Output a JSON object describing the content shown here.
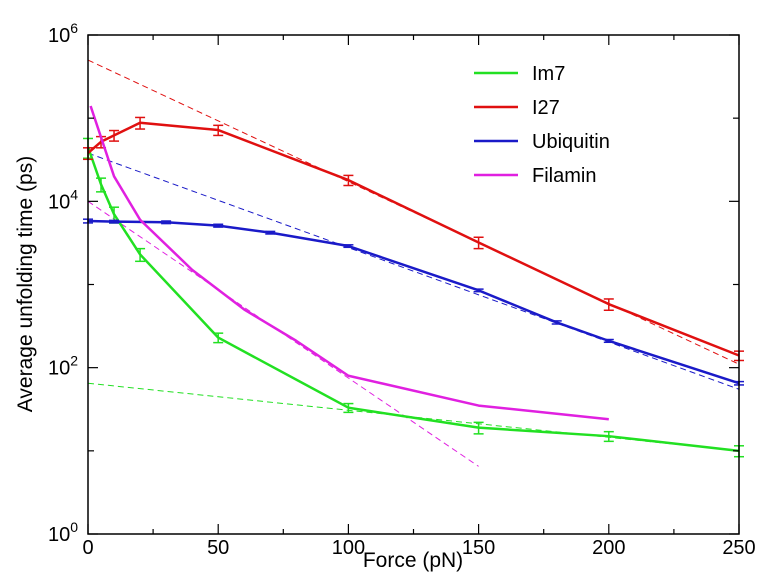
{
  "chart_data": {
    "type": "line",
    "xlabel": "Force (pN)",
    "ylabel": "Average unfolding time (ps)",
    "xlim": [
      0,
      250
    ],
    "ylim": [
      1,
      1000000
    ],
    "yscale": "log",
    "grid": false,
    "legend_position": "top-right",
    "x_ticks": [
      0,
      50,
      100,
      150,
      200,
      250
    ],
    "x_tick_labels": [
      "0",
      "50",
      "100",
      "150",
      "200",
      "250"
    ],
    "y_ticks": [
      1,
      100,
      10000,
      1000000
    ],
    "y_tick_labels": [
      {
        "base": "10",
        "exp": "0"
      },
      {
        "base": "10",
        "exp": "2"
      },
      {
        "base": "10",
        "exp": "4"
      },
      {
        "base": "10",
        "exp": "6"
      }
    ],
    "series": [
      {
        "name": "Im7",
        "color": "#22e022",
        "points": [
          {
            "x": 0,
            "y": 45000,
            "err": 12000
          },
          {
            "x": 5,
            "y": 16000,
            "err": 3000
          },
          {
            "x": 10,
            "y": 7000,
            "err": 1500
          },
          {
            "x": 20,
            "y": 2300,
            "err": 400
          },
          {
            "x": 50,
            "y": 230,
            "err": 30
          },
          {
            "x": 100,
            "y": 33,
            "err": 4
          },
          {
            "x": 150,
            "y": 19,
            "err": 3
          },
          {
            "x": 200,
            "y": 15,
            "err": 2
          },
          {
            "x": 250,
            "y": 10,
            "err": 1.5
          }
        ],
        "fit": [
          {
            "x": 0,
            "y": 65
          },
          {
            "x": 250,
            "y": 10
          }
        ]
      },
      {
        "name": "I27",
        "color": "#e01010",
        "points": [
          {
            "x": 0,
            "y": 38000,
            "err": 6000
          },
          {
            "x": 5,
            "y": 52000,
            "err": 8000
          },
          {
            "x": 10,
            "y": 62000,
            "err": 9000
          },
          {
            "x": 20,
            "y": 88000,
            "err": 14000
          },
          {
            "x": 50,
            "y": 72000,
            "err": 10000
          },
          {
            "x": 100,
            "y": 18000,
            "err": 2500
          },
          {
            "x": 150,
            "y": 3200,
            "err": 500
          },
          {
            "x": 200,
            "y": 580,
            "err": 90
          },
          {
            "x": 250,
            "y": 140,
            "err": 18
          }
        ],
        "fit": [
          {
            "x": 0,
            "y": 500000
          },
          {
            "x": 250,
            "y": 110
          }
        ]
      },
      {
        "name": "Ubiquitin",
        "color": "#1a1ac8",
        "points": [
          {
            "x": 0,
            "y": 5800,
            "err": 300
          },
          {
            "x": 10,
            "y": 5700,
            "err": 200
          },
          {
            "x": 30,
            "y": 5600,
            "err": 200
          },
          {
            "x": 50,
            "y": 5100,
            "err": 200
          },
          {
            "x": 70,
            "y": 4200,
            "err": 150
          },
          {
            "x": 100,
            "y": 2900,
            "err": 100
          },
          {
            "x": 150,
            "y": 850,
            "err": 30
          },
          {
            "x": 180,
            "y": 350,
            "err": 15
          },
          {
            "x": 200,
            "y": 210,
            "err": 8
          },
          {
            "x": 250,
            "y": 65,
            "err": 3
          }
        ],
        "fit": [
          {
            "x": 0,
            "y": 38000
          },
          {
            "x": 250,
            "y": 55
          }
        ]
      },
      {
        "name": "Filamin",
        "color": "#e020e0",
        "points": [
          {
            "x": 1,
            "y": 140000
          },
          {
            "x": 10,
            "y": 20000
          },
          {
            "x": 20,
            "y": 6000
          },
          {
            "x": 40,
            "y": 1500
          },
          {
            "x": 60,
            "y": 500
          },
          {
            "x": 80,
            "y": 210
          },
          {
            "x": 100,
            "y": 80
          },
          {
            "x": 150,
            "y": 35
          },
          {
            "x": 200,
            "y": 24
          }
        ],
        "fit": [
          {
            "x": 0,
            "y": 10000
          },
          {
            "x": 150,
            "y": 6.5
          }
        ]
      }
    ]
  }
}
